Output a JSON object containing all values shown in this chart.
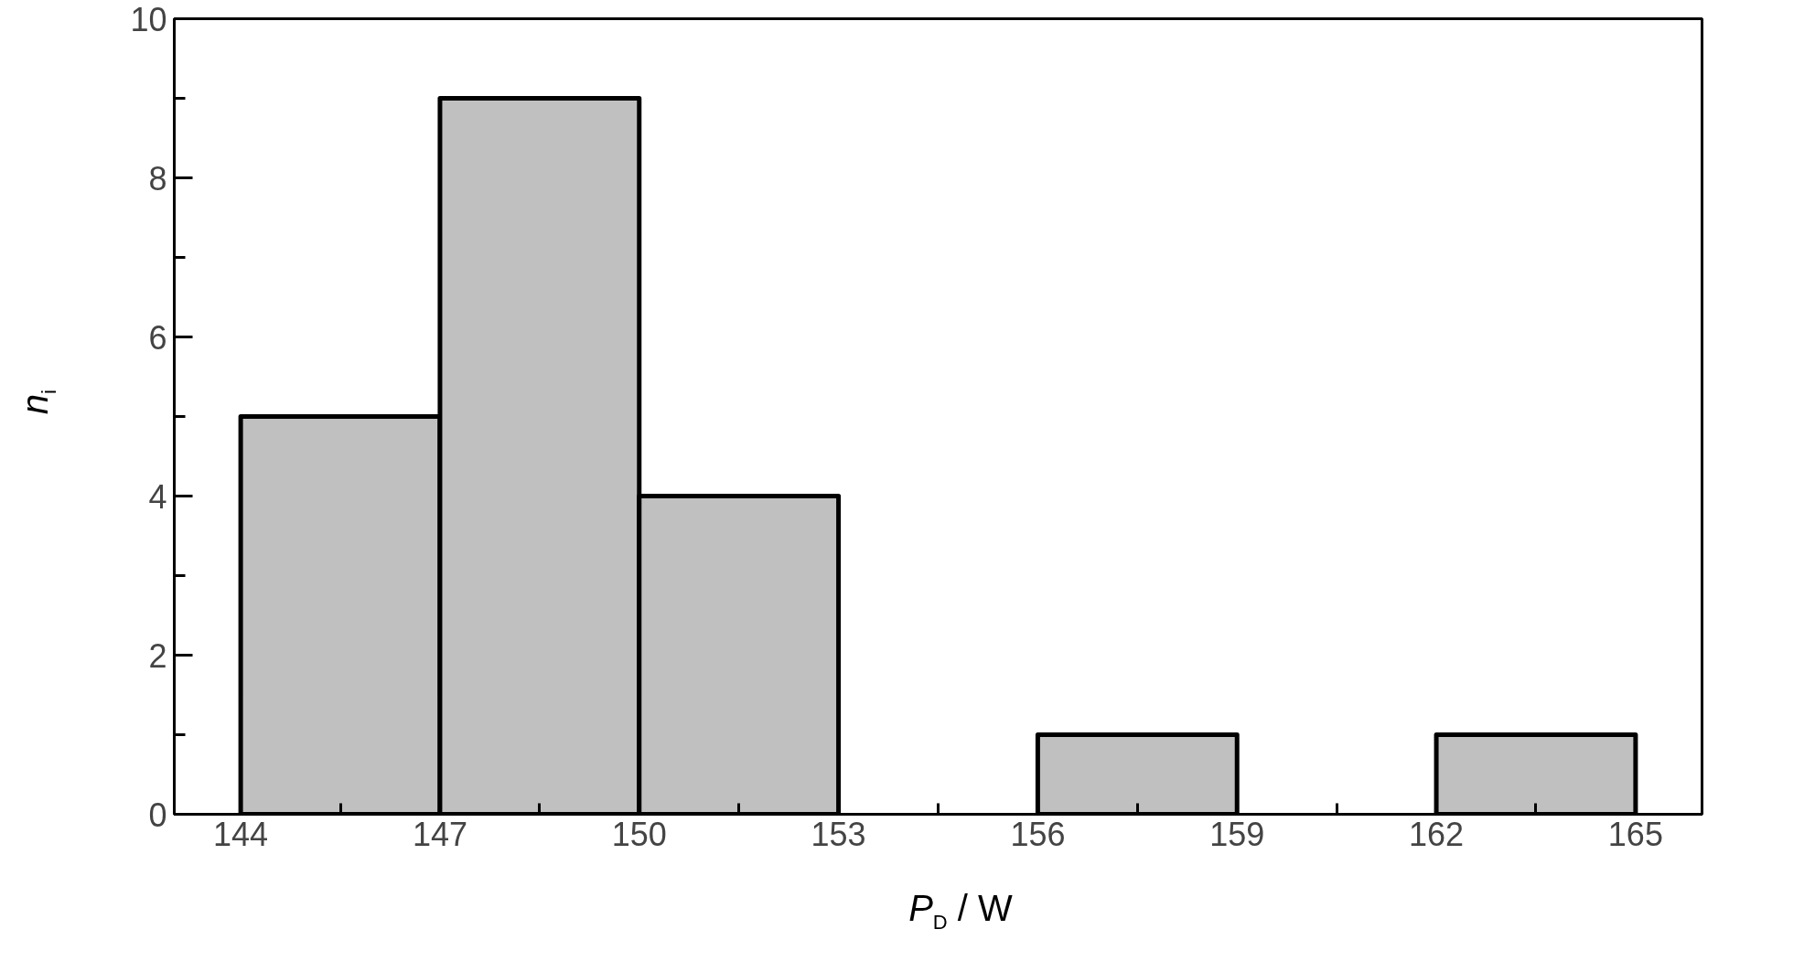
{
  "chart_data": {
    "type": "histogram",
    "xlabel": "P$_{D}$ / W",
    "ylabel": "n$_{i}$",
    "bins": [
      144,
      147,
      150,
      153,
      156,
      159,
      162,
      165
    ],
    "values": [
      5,
      9,
      4,
      0,
      1,
      0,
      1
    ],
    "color": "#c0c0c0",
    "xlim": [
      143,
      166
    ],
    "xticks": [
      144,
      {
        "value": 145.5,
        "label": null
      },
      147,
      {
        "value": 148.5,
        "label": null
      },
      150,
      {
        "value": 151.5,
        "label": null
      },
      153,
      {
        "value": 154.5,
        "label": null
      },
      156,
      {
        "value": 157.5,
        "label": null
      },
      159,
      {
        "value": 160.5,
        "label": null
      },
      162,
      {
        "value": 163.5,
        "label": null
      },
      165
    ],
    "ylim": [
      0,
      10
    ],
    "yticks": [
      0,
      {
        "value": 1,
        "label": null
      },
      2,
      {
        "value": 3,
        "label": null
      },
      4,
      {
        "value": 5,
        "label": null
      },
      6,
      {
        "value": 7,
        "label": null
      },
      8,
      {
        "value": 9,
        "label": null
      },
      10
    ],
    "grid": false
  }
}
